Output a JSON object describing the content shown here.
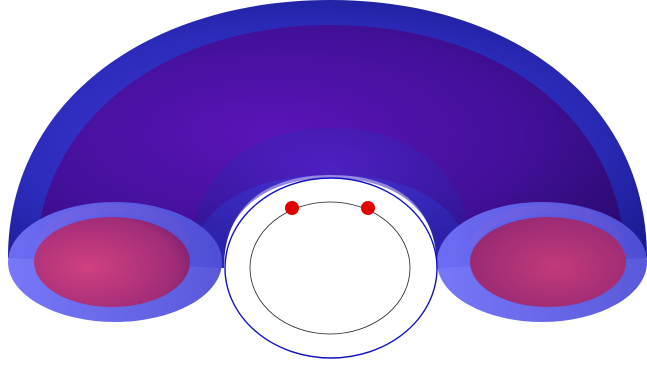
{
  "scene": {
    "subject": "half-torus-render",
    "colors": {
      "background": "#ffffff",
      "outer_shell": "#2a2ab8",
      "outer_shell_light": "#5a5af0",
      "inner_shell": "#4a0ea8",
      "inner_shell_dark": "#2e0a78",
      "cross_section_outer": "#6a6af5",
      "cross_section_inner": "#c0306a",
      "red_band": "#e01830",
      "marker": "#e00000",
      "blue_ring": "#1010c0",
      "black_ring": "#222222"
    },
    "markers": [
      {
        "name": "left-marker"
      },
      {
        "name": "right-marker"
      }
    ]
  }
}
